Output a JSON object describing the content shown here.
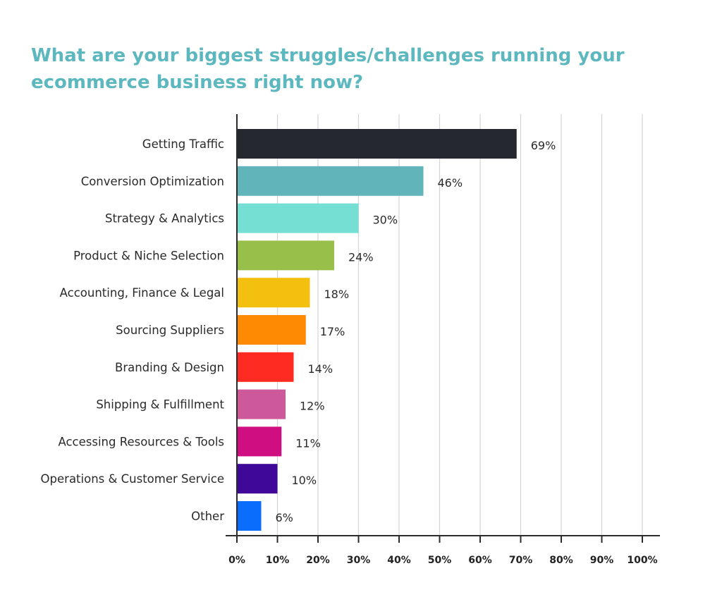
{
  "chart_data": {
    "type": "bar",
    "orientation": "horizontal",
    "title": "What are your biggest struggles/challenges running your ecommerce business right now?",
    "categories": [
      "Getting Traffic",
      "Conversion Optimization",
      "Strategy & Analytics",
      "Product & Niche Selection",
      "Accounting, Finance & Legal",
      "Sourcing Suppliers",
      "Branding & Design",
      "Shipping & Fulfillment",
      "Accessing Resources & Tools",
      "Operations & Customer Service",
      "Other"
    ],
    "values": [
      69,
      46,
      30,
      24,
      18,
      17,
      14,
      12,
      11,
      10,
      6
    ],
    "value_labels": [
      "69%",
      "46%",
      "30%",
      "24%",
      "18%",
      "17%",
      "14%",
      "12%",
      "11%",
      "10%",
      "6%"
    ],
    "colors": [
      "#262830",
      "#62b4bb",
      "#76dfd3",
      "#98bf4a",
      "#f4c010",
      "#fd8a02",
      "#fe2b22",
      "#cd599a",
      "#cf0e82",
      "#3f0899",
      "#0b6dfb"
    ],
    "xlim": [
      0,
      100
    ],
    "x_ticks": [
      0,
      10,
      20,
      30,
      40,
      50,
      60,
      70,
      80,
      90,
      100
    ],
    "x_tick_labels": [
      "0%",
      "10%",
      "20%",
      "30%",
      "40%",
      "50%",
      "60%",
      "70%",
      "80%",
      "90%",
      "100%"
    ],
    "grid": "vertical",
    "xlabel": "",
    "ylabel": ""
  }
}
